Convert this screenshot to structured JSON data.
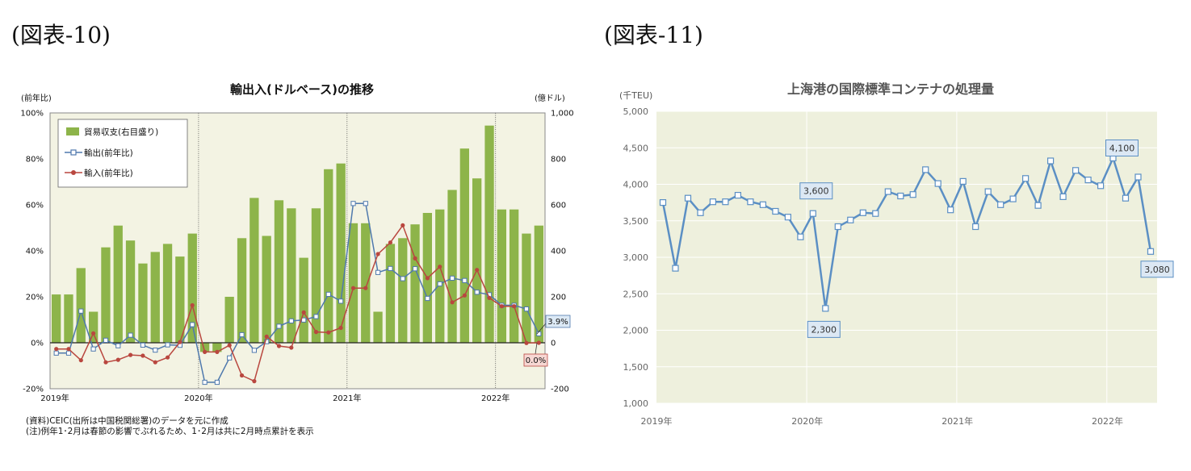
{
  "figures": {
    "left_label": "(図表-10)",
    "right_label": "(図表-11)"
  },
  "notes": {
    "source": "(資料)CEIC(出所は中国税関総署)のデータを元に作成",
    "note": "(注)例年1･2月は春節の影響でぶれるため、1･2月は共に2月時点累計を表示"
  },
  "chart_data": [
    {
      "type": "bar+line",
      "title": "輸出入(ドルベース)の推移",
      "y_left_unit": "(前年比)",
      "y_right_unit": "(億ドル)",
      "y_left_ticks": [
        "100%",
        "80%",
        "60%",
        "40%",
        "20%",
        "0%",
        "-20%"
      ],
      "y_right_ticks": [
        "1,000",
        "800",
        "600",
        "400",
        "200",
        "0",
        "-200"
      ],
      "ylim_left": [
        -20,
        100
      ],
      "ylim_right": [
        -200,
        1000
      ],
      "x_year_labels": [
        "2019年",
        "2020年",
        "2021年",
        "2022年"
      ],
      "x": [
        "2019-01",
        "2019-02",
        "2019-03",
        "2019-04",
        "2019-05",
        "2019-06",
        "2019-07",
        "2019-08",
        "2019-09",
        "2019-10",
        "2019-11",
        "2019-12",
        "2020-01",
        "2020-02",
        "2020-03",
        "2020-04",
        "2020-05",
        "2020-06",
        "2020-07",
        "2020-08",
        "2020-09",
        "2020-10",
        "2020-11",
        "2020-12",
        "2021-01",
        "2021-02",
        "2021-03",
        "2021-04",
        "2021-05",
        "2021-06",
        "2021-07",
        "2021-08",
        "2021-09",
        "2021-10",
        "2021-11",
        "2021-12",
        "2022-01",
        "2022-02",
        "2022-03",
        "2022-04"
      ],
      "legend_position": "top-left",
      "grid": false,
      "background": "#f3f3e3",
      "series": [
        {
          "name": "貿易収支(右目盛り)",
          "type": "bar",
          "axis": "right",
          "color": "#8db44a",
          "values": [
            210,
            210,
            325,
            135,
            415,
            510,
            445,
            345,
            395,
            430,
            375,
            475,
            -40,
            -40,
            200,
            455,
            630,
            465,
            620,
            585,
            370,
            585,
            755,
            780,
            520,
            520,
            135,
            430,
            455,
            515,
            565,
            580,
            665,
            845,
            715,
            945,
            580,
            580,
            475,
            510
          ]
        },
        {
          "name": "輸出(前年比)",
          "type": "line",
          "axis": "left",
          "color": "#4f79ad",
          "values": [
            -4.5,
            -4.5,
            13.8,
            -2.7,
            1.1,
            -1.3,
            3.3,
            -1,
            -3.2,
            -0.9,
            -1.1,
            7.9,
            -17.2,
            -17.2,
            -6.6,
            3.5,
            -3.3,
            0.5,
            7.2,
            9.5,
            9.9,
            11.4,
            21.1,
            18.1,
            60.6,
            60.6,
            30.6,
            32.3,
            27.9,
            32.2,
            19.3,
            25.6,
            28.1,
            27.1,
            22,
            20.9,
            16.3,
            16.3,
            14.7,
            3.9
          ]
        },
        {
          "name": "輸入(前年比)",
          "type": "line",
          "axis": "left",
          "color": "#b9473f",
          "values": [
            -2.7,
            -2.7,
            -7.6,
            4.1,
            -8.5,
            -7.4,
            -5.3,
            -5.6,
            -8.5,
            -6.4,
            0.3,
            16.3,
            -4,
            -4,
            -1.1,
            -14.2,
            -16.7,
            2.7,
            -1.4,
            -2.1,
            13.2,
            4.7,
            4.5,
            6.5,
            23.8,
            23.8,
            38.6,
            43.6,
            51.1,
            36.7,
            28.1,
            33.1,
            17.6,
            20.6,
            31.7,
            19.5,
            15.9,
            15.9,
            -0.1,
            0.0
          ]
        }
      ],
      "annotations": [
        "3.9%",
        "0.0%"
      ]
    },
    {
      "type": "line",
      "title": "上海港の国際標準コンテナの処理量",
      "y_unit": "(千TEU)",
      "y_ticks": [
        "5,000",
        "4,500",
        "4,000",
        "3,500",
        "3,000",
        "2,500",
        "2,000",
        "1,500",
        "1,000"
      ],
      "ylim": [
        1000,
        5000
      ],
      "x_year_labels": [
        "2019年",
        "2020年",
        "2021年",
        "2022年"
      ],
      "x": [
        "2019-01",
        "2019-02",
        "2019-03",
        "2019-04",
        "2019-05",
        "2019-06",
        "2019-07",
        "2019-08",
        "2019-09",
        "2019-10",
        "2019-11",
        "2019-12",
        "2020-01",
        "2020-02",
        "2020-03",
        "2020-04",
        "2020-05",
        "2020-06",
        "2020-07",
        "2020-08",
        "2020-09",
        "2020-10",
        "2020-11",
        "2020-12",
        "2021-01",
        "2021-02",
        "2021-03",
        "2021-04",
        "2021-05",
        "2021-06",
        "2021-07",
        "2021-08",
        "2021-09",
        "2021-10",
        "2021-11",
        "2021-12",
        "2022-01",
        "2022-02",
        "2022-03",
        "2022-04"
      ],
      "background": "#eef0dd",
      "grid": true,
      "series": [
        {
          "name": "",
          "color": "#5b8fc4",
          "values": [
            3750,
            2850,
            3810,
            3610,
            3760,
            3760,
            3850,
            3760,
            3720,
            3630,
            3550,
            3280,
            3600,
            2300,
            3420,
            3510,
            3610,
            3600,
            3900,
            3840,
            3860,
            4200,
            4010,
            3650,
            4040,
            3420,
            3900,
            3720,
            3800,
            4080,
            3710,
            4320,
            3830,
            4190,
            4060,
            3980,
            4360,
            3810,
            4100,
            3080
          ]
        }
      ],
      "annotations": [
        "3,600",
        "2,300",
        "4,100",
        "3,080"
      ]
    }
  ]
}
